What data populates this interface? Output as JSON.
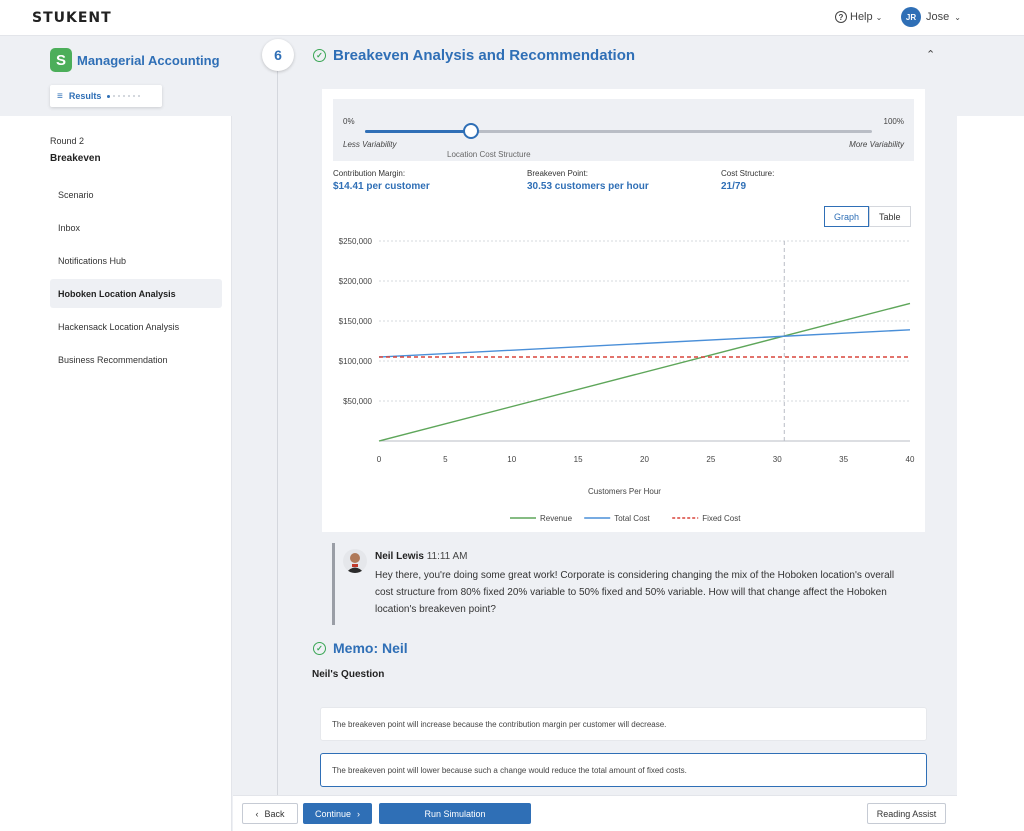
{
  "header": {
    "logo": "STUKENT",
    "help_label": "Help",
    "user_initials": "JR",
    "user_name": "Jose"
  },
  "sidebar": {
    "course_badge": "S",
    "course_title": "Managerial Accounting",
    "results_label": "Results",
    "round_label": "Round 2",
    "round_title": "Breakeven",
    "items": [
      {
        "label": "Scenario"
      },
      {
        "label": "Inbox"
      },
      {
        "label": "Notifications Hub"
      },
      {
        "label": "Hoboken Location Analysis"
      },
      {
        "label": "Hackensack Location Analysis"
      },
      {
        "label": "Business Recommendation"
      }
    ],
    "active_item": "Hoboken Location Analysis"
  },
  "section": {
    "step_number": "6",
    "title": "Breakeven Analysis and Recommendation"
  },
  "slider": {
    "min_label": "0%",
    "max_label": "100%",
    "left_caption": "Less Variability",
    "right_caption": "More Variability",
    "caption": "Location Cost Structure",
    "value_fraction": 0.21
  },
  "stats": {
    "contribution_margin_label": "Contribution Margin:",
    "contribution_margin_value": "$14.41 per customer",
    "breakeven_label": "Breakeven Point:",
    "breakeven_value": "30.53 customers per hour",
    "cost_structure_label": "Cost Structure:",
    "cost_structure_value": "21/79"
  },
  "view_toggle": {
    "graph_label": "Graph",
    "table_label": "Table",
    "selected": "Graph"
  },
  "chart_data": {
    "type": "line",
    "xlabel": "Customers Per Hour",
    "ylabel": "",
    "xlim": [
      0,
      40
    ],
    "ylim": [
      0,
      250000
    ],
    "x_ticks": [
      "0",
      "5",
      "10",
      "15",
      "20",
      "25",
      "30",
      "35",
      "40"
    ],
    "y_ticks": [
      "$50,000",
      "$100,000",
      "$150,000",
      "$200,000",
      "$250,000"
    ],
    "y_tick_values": [
      50000,
      100000,
      150000,
      200000,
      250000
    ],
    "grid": true,
    "breakeven_x": 30.53,
    "legend_position": "bottom",
    "series": [
      {
        "name": "Revenue",
        "color": "#5ea65a",
        "style": "solid",
        "x": [
          0,
          40
        ],
        "y": [
          0,
          172000
        ]
      },
      {
        "name": "Total Cost",
        "color": "#4a8fd8",
        "style": "solid",
        "x": [
          0,
          40
        ],
        "y": [
          105000,
          139000
        ]
      },
      {
        "name": "Fixed Cost",
        "color": "#d9453c",
        "style": "dashed",
        "x": [
          0,
          40
        ],
        "y": [
          105000,
          105000
        ]
      }
    ]
  },
  "message": {
    "author": "Neil Lewis",
    "time": "11:11 AM",
    "body": "Hey there, you're doing some great work! Corporate is considering changing the mix of the Hoboken location's overall cost structure from 80% fixed 20% variable to 50% fixed and 50% variable. How will that change affect the Hoboken location's breakeven point?"
  },
  "memo": {
    "title": "Memo: Neil",
    "question_label": "Neil's Question",
    "options": [
      {
        "text": "The breakeven point will increase because the contribution margin per customer will decrease.",
        "selected": false
      },
      {
        "text": "The breakeven point will lower because such a change would reduce the total amount of fixed costs.",
        "selected": true
      }
    ]
  },
  "footer": {
    "back_label": "Back",
    "continue_label": "Continue",
    "run_label": "Run Simulation",
    "reading_label": "Reading Assist"
  }
}
